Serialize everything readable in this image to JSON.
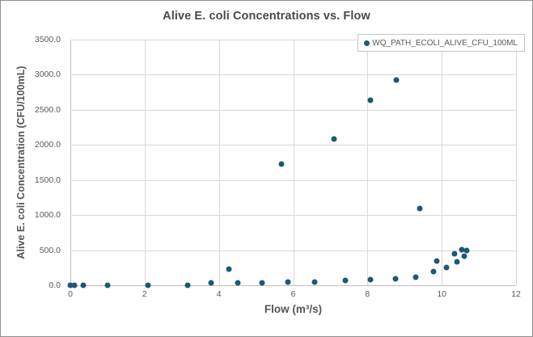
{
  "title": "Alive E. coli Concentrations vs. Flow",
  "legend": {
    "label": "WQ_PATH_ECOLI_ALIVE_CFU_100ML"
  },
  "axes": {
    "x": {
      "label": "Flow (m³/s)",
      "tick_values": [
        0,
        2,
        4,
        6,
        8,
        10,
        12
      ],
      "tick_labels": [
        "0",
        "2",
        "4",
        "6",
        "8",
        "10",
        "12"
      ]
    },
    "y": {
      "label": "Alive E. coli Concentration (CFU/100mL)",
      "tick_values": [
        0,
        500,
        1000,
        1500,
        2000,
        2500,
        3000,
        3500
      ],
      "tick_labels": [
        "0.0",
        "500.0",
        "1000.0",
        "1500.0",
        "2000.0",
        "2500.0",
        "3000.0",
        "3500.0"
      ]
    }
  },
  "colors": {
    "marker": "#1d5875",
    "gridline": "#d9d9d9",
    "axis_line": "#bfbfbf",
    "title_text": "#4a4a4a",
    "tick_text": "#595959",
    "frame_border": "#8f8f8f"
  },
  "chart_data": {
    "type": "scatter",
    "title": "Alive E. coli Concentrations vs. Flow",
    "xlabel": "Flow (m³/s)",
    "ylabel": "Alive E. coli Concentration (CFU/100mL)",
    "xlim": [
      0,
      12
    ],
    "ylim": [
      0,
      3500
    ],
    "grid": true,
    "legend_position": "top-right",
    "series": [
      {
        "name": "WQ_PATH_ECOLI_ALIVE_CFU_100ML",
        "color": "#1d5875",
        "points": [
          [
            0.0,
            0
          ],
          [
            0.1,
            0
          ],
          [
            0.35,
            0
          ],
          [
            1.0,
            0
          ],
          [
            2.1,
            0
          ],
          [
            3.15,
            0
          ],
          [
            3.8,
            30
          ],
          [
            4.27,
            230
          ],
          [
            4.5,
            30
          ],
          [
            5.17,
            40
          ],
          [
            5.68,
            1730
          ],
          [
            5.85,
            45
          ],
          [
            6.58,
            45
          ],
          [
            7.1,
            2080
          ],
          [
            7.4,
            70
          ],
          [
            8.08,
            80
          ],
          [
            8.08,
            2640
          ],
          [
            8.75,
            95
          ],
          [
            8.78,
            2920
          ],
          [
            9.3,
            115
          ],
          [
            9.4,
            1090
          ],
          [
            9.78,
            190
          ],
          [
            9.87,
            350
          ],
          [
            10.12,
            250
          ],
          [
            10.35,
            450
          ],
          [
            10.4,
            330
          ],
          [
            10.55,
            510
          ],
          [
            10.6,
            410
          ],
          [
            10.67,
            490
          ]
        ]
      }
    ]
  }
}
